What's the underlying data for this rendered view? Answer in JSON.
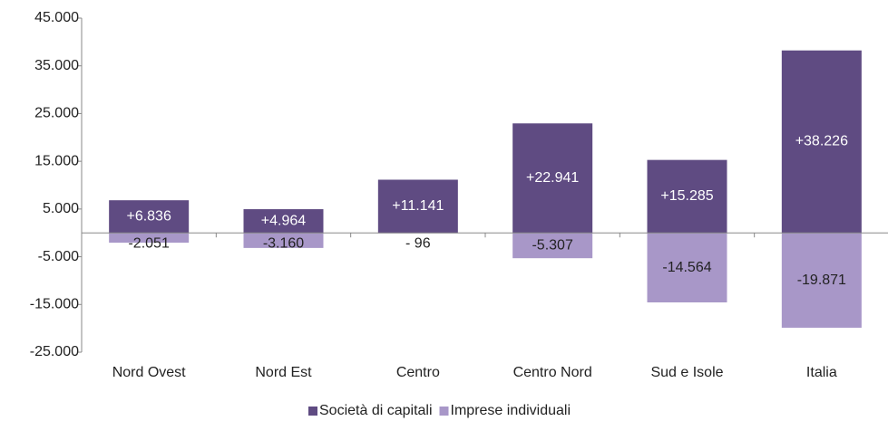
{
  "chart_data": {
    "type": "bar",
    "categories": [
      "Nord Ovest",
      "Nord Est",
      "Centro",
      "Centro Nord",
      "Sud e Isole",
      "Italia"
    ],
    "series": [
      {
        "name": "Società di capitali",
        "color": "#5f4b82",
        "values": [
          6836,
          4964,
          11141,
          22941,
          15285,
          38226
        ],
        "value_labels": [
          "+6.836",
          "+4.964",
          "+11.141",
          "+22.941",
          "+15.285",
          "+38.226"
        ]
      },
      {
        "name": "Imprese individuali",
        "color": "#a897c8",
        "values": [
          -2051,
          -3160,
          -96,
          -5307,
          -14564,
          -19871
        ],
        "value_labels": [
          "-2.051",
          "-3.160",
          "- 96",
          "-5.307",
          "-14.564",
          "-19.871"
        ]
      }
    ],
    "ylim": [
      -25000,
      45000
    ],
    "yticks": [
      {
        "value": -25000,
        "label": "-25.000"
      },
      {
        "value": -15000,
        "label": "-15.000"
      },
      {
        "value": -5000,
        "label": "-5.000"
      },
      {
        "value": 5000,
        "label": "5.000"
      },
      {
        "value": 15000,
        "label": "15.000"
      },
      {
        "value": 25000,
        "label": "25.000"
      },
      {
        "value": 35000,
        "label": "35.000"
      },
      {
        "value": 45000,
        "label": "45.000"
      }
    ],
    "legend": "bottom"
  }
}
